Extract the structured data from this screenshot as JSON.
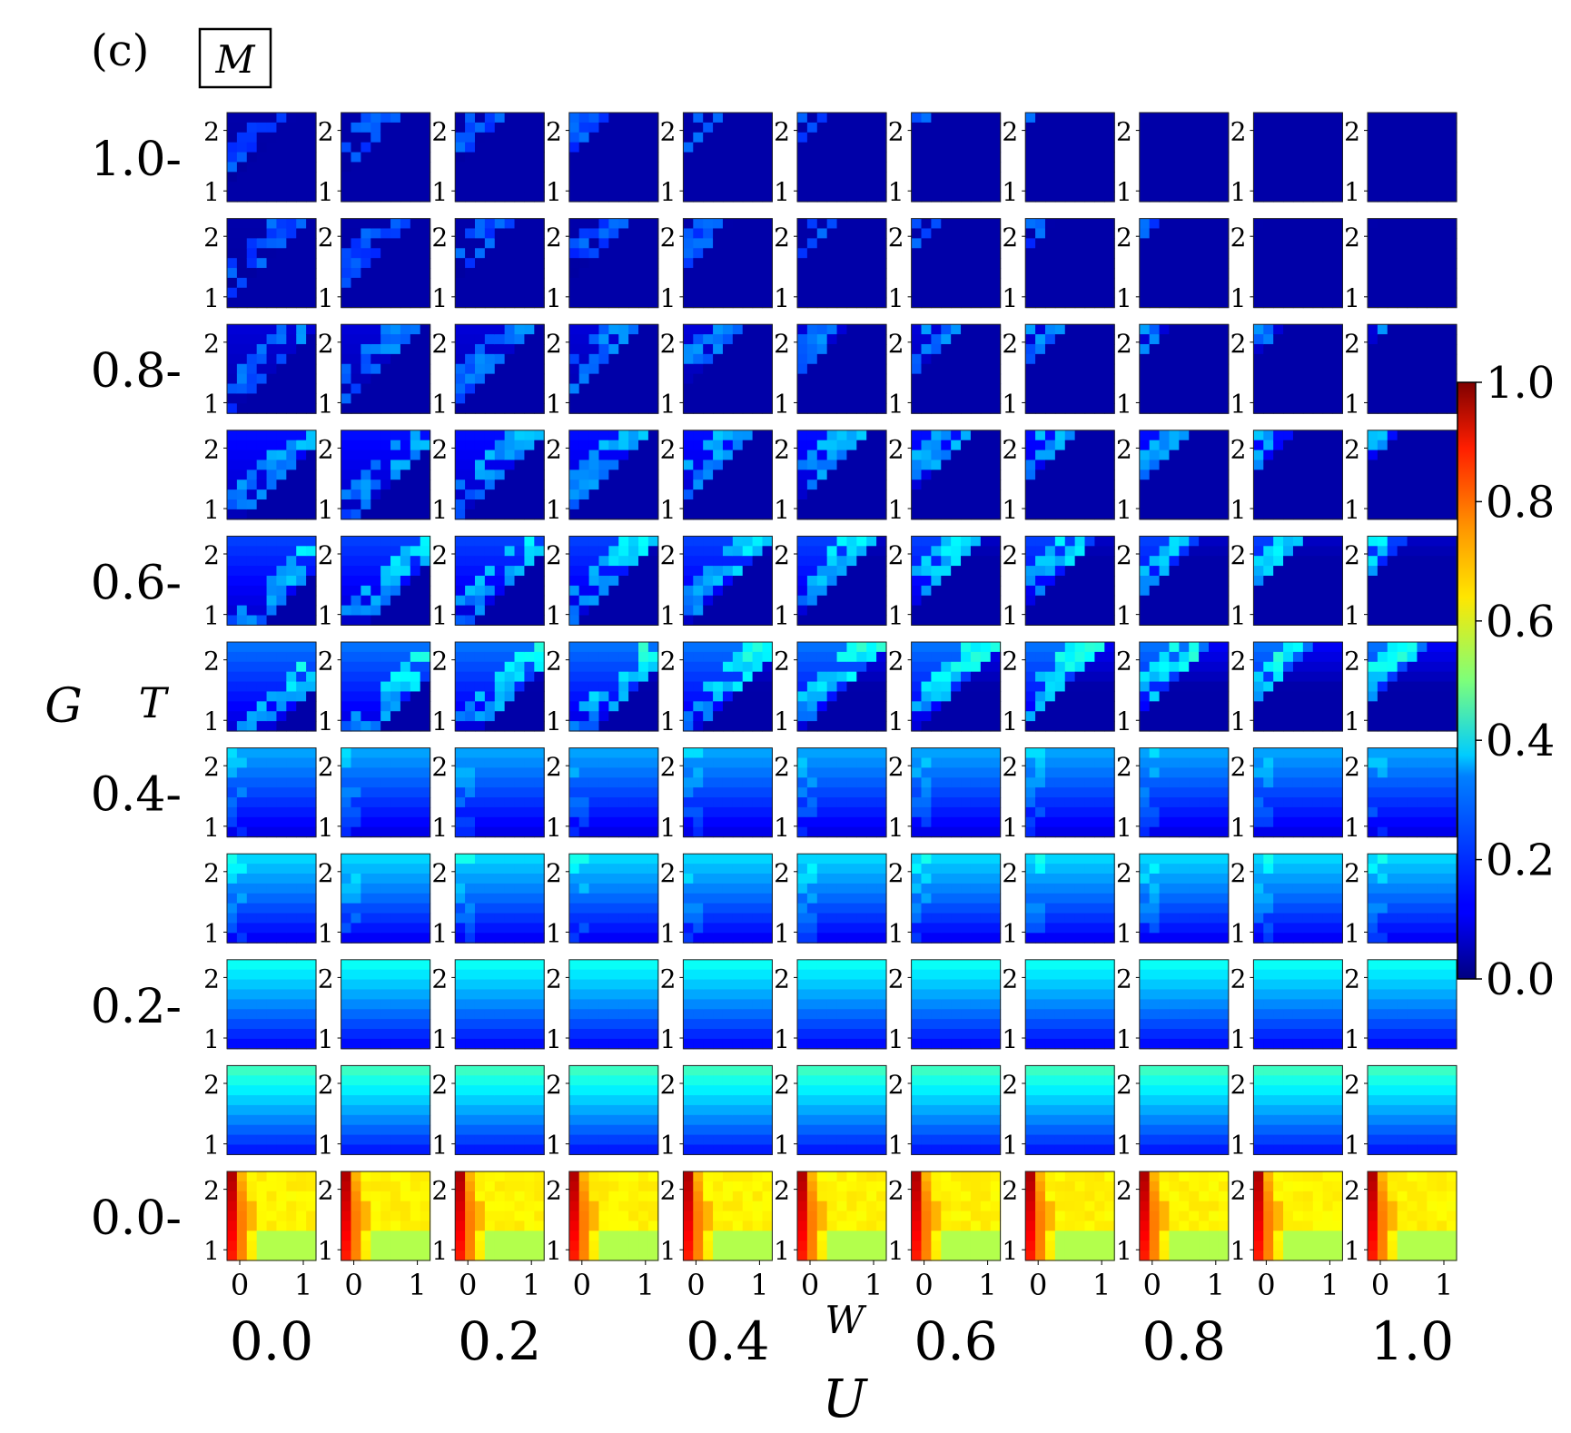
{
  "panel_label": "(c)",
  "quantity_label": "M",
  "outer_axes": {
    "x_label": "U",
    "y_label": "G",
    "x_ticks": [
      "0.0",
      "0.2",
      "0.4",
      "0.6",
      "0.8",
      "1.0"
    ],
    "y_ticks": [
      "0.0-",
      "0.2-",
      "0.4-",
      "0.6-",
      "0.8-",
      "1.0-"
    ]
  },
  "inner_axes": {
    "x_label": "W",
    "y_label": "T",
    "x_ticks": [
      "0",
      "1"
    ],
    "y_ticks": [
      "1",
      "2"
    ]
  },
  "colorbar": {
    "colormap": "jet",
    "ticks": [
      "0.0",
      "0.2",
      "0.4",
      "0.6",
      "0.8",
      "1.0"
    ],
    "range": [
      0.0,
      1.0
    ]
  },
  "chart_data": {
    "type": "heatmap",
    "description_grid": "11 x 11 grid of heatmaps of M(W,T); columns U = 0.0..1.0 step 0.1, rows G = 1.0 (top) .. 0.0 (bottom) step 0.1",
    "U_values": [
      0.0,
      0.1,
      0.2,
      0.3,
      0.4,
      0.5,
      0.6,
      0.7,
      0.8,
      0.9,
      1.0
    ],
    "G_values": [
      1.0,
      0.9,
      0.8,
      0.7,
      0.6,
      0.5,
      0.4,
      0.3,
      0.2,
      0.1,
      0.0
    ],
    "W_range": [
      0.0,
      1.0
    ],
    "T_range": [
      0.9,
      2.1
    ],
    "cells_per_panel": 9,
    "value_range": [
      0.0,
      1.0
    ],
    "approx_typical_value_by_G": {
      "1.0": 0.05,
      "0.9": 0.07,
      "0.8": 0.08,
      "0.7": 0.1,
      "0.6": 0.14,
      "0.5": 0.18,
      "0.4": 0.2,
      "0.3": 0.25,
      "0.2": 0.3,
      "0.1": 0.35,
      "0.0": 0.62
    }
  }
}
